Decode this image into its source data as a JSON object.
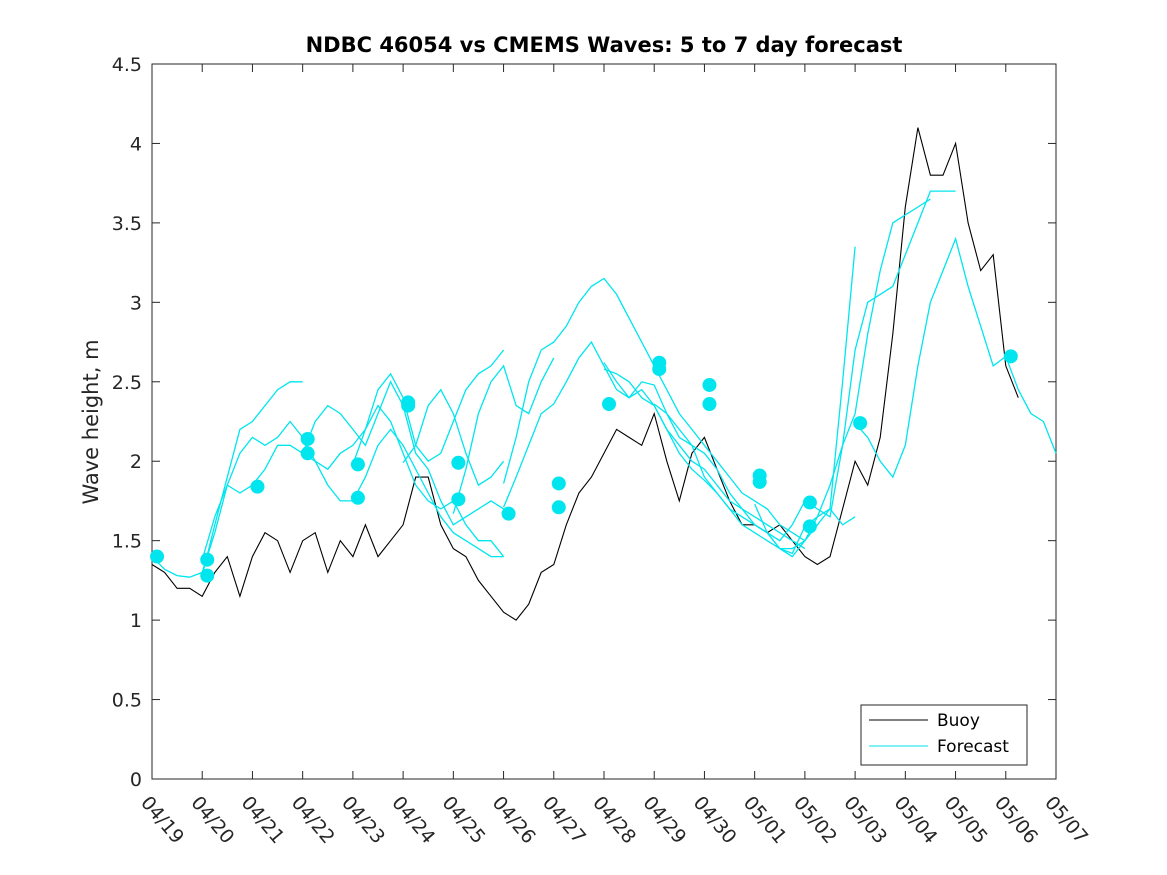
{
  "chart_data": {
    "type": "line",
    "title": "NDBC 46054 vs CMEMS Waves: 5 to 7 day forecast",
    "xlabel": "",
    "ylabel": "Wave height, m",
    "xlim": [
      0,
      18
    ],
    "ylim": [
      0,
      4.5
    ],
    "x_tick_labels": [
      "04/19",
      "04/20",
      "04/21",
      "04/22",
      "04/23",
      "04/24",
      "04/25",
      "04/26",
      "04/27",
      "04/28",
      "04/29",
      "04/30",
      "05/01",
      "05/02",
      "05/03",
      "05/04",
      "05/05",
      "05/06",
      "05/07"
    ],
    "y_ticks": [
      0,
      0.5,
      1,
      1.5,
      2,
      2.5,
      3,
      3.5,
      4,
      4.5
    ],
    "y_tick_labels": [
      "0",
      "0.5",
      "1",
      "1.5",
      "2",
      "2.5",
      "3",
      "3.5",
      "4",
      "4.5"
    ],
    "legend": {
      "position": "bottom-right",
      "entries": [
        "Buoy",
        "Forecast"
      ]
    },
    "colors": {
      "buoy": "#000000",
      "forecast": "#00e5ee",
      "axis": "#262626"
    },
    "buoy": {
      "name": "Buoy",
      "x": [
        0,
        0.25,
        0.5,
        0.75,
        1.0,
        1.25,
        1.5,
        1.75,
        2.0,
        2.25,
        2.5,
        2.75,
        3.0,
        3.25,
        3.5,
        3.75,
        4.0,
        4.25,
        4.5,
        4.75,
        5.0,
        5.25,
        5.5,
        5.75,
        6.0,
        6.25,
        6.5,
        6.75,
        7.0,
        7.25,
        7.5,
        7.75,
        8.0,
        8.25,
        8.5,
        8.75,
        9.0,
        9.25,
        9.5,
        9.75,
        10.0,
        10.25,
        10.5,
        10.75,
        11.0,
        11.25,
        11.5,
        11.75,
        12.0,
        12.25,
        12.5,
        12.75,
        13.0,
        13.25,
        13.5,
        13.75,
        14.0,
        14.25,
        14.5,
        14.75,
        15.0,
        15.25,
        15.5,
        15.75,
        16.0,
        16.25,
        16.5,
        16.75,
        17.0,
        17.25
      ],
      "y": [
        1.35,
        1.3,
        1.2,
        1.2,
        1.15,
        1.3,
        1.4,
        1.15,
        1.4,
        1.55,
        1.5,
        1.3,
        1.5,
        1.55,
        1.3,
        1.5,
        1.4,
        1.6,
        1.4,
        1.5,
        1.6,
        1.9,
        1.9,
        1.6,
        1.45,
        1.4,
        1.25,
        1.15,
        1.05,
        1.0,
        1.1,
        1.3,
        1.35,
        1.6,
        1.8,
        1.9,
        2.05,
        2.2,
        2.15,
        2.1,
        2.3,
        2.0,
        1.75,
        2.05,
        2.15,
        1.95,
        1.75,
        1.6,
        1.6,
        1.55,
        1.6,
        1.5,
        1.4,
        1.35,
        1.4,
        1.7,
        2.0,
        1.85,
        2.15,
        2.8,
        3.6,
        4.1,
        3.8,
        3.8,
        4.0,
        3.5,
        3.2,
        3.3,
        2.6,
        2.4
      ]
    },
    "forecast_runs": [
      {
        "x": [
          0,
          0.25,
          0.5,
          0.75,
          1.0,
          1.25,
          1.5,
          1.75,
          2.0,
          2.25,
          2.5,
          2.75,
          3.0,
          3.25,
          3.5,
          3.75,
          4.0,
          4.25,
          4.5,
          4.75,
          5.0,
          5.25,
          5.5,
          5.75,
          6.0,
          6.25,
          6.5,
          6.75,
          7.0
        ],
        "y": [
          1.4,
          1.32,
          1.28,
          1.27,
          1.3,
          1.55,
          1.85,
          1.8,
          1.85,
          1.95,
          2.1,
          2.1,
          2.05,
          2.0,
          1.85,
          1.75,
          1.75,
          1.9,
          2.1,
          2.2,
          2.1,
          1.95,
          1.8,
          1.65,
          1.55,
          1.5,
          1.45,
          1.4,
          1.4
        ]
      },
      {
        "x": [
          1.0,
          1.25,
          1.5,
          1.75,
          2.0,
          2.25,
          2.5,
          2.75,
          3.0
        ],
        "y": [
          1.28,
          1.6,
          1.9,
          2.2,
          2.25,
          2.35,
          2.45,
          2.5,
          2.5
        ]
      },
      {
        "x": [
          1.0,
          1.25,
          1.5,
          1.75,
          2.0,
          2.25,
          2.5,
          2.75,
          3.0,
          3.25,
          3.5,
          3.75,
          4.0,
          4.25,
          4.5,
          4.75,
          5.0,
          5.25,
          5.5,
          5.75,
          6.0,
          6.25,
          6.5,
          6.75,
          7.0
        ],
        "y": [
          1.38,
          1.65,
          1.85,
          2.05,
          2.15,
          2.1,
          2.15,
          2.25,
          2.15,
          2.0,
          1.95,
          2.05,
          2.1,
          2.2,
          2.35,
          2.25,
          2.05,
          1.85,
          1.75,
          1.7,
          1.75,
          1.6,
          1.5,
          1.5,
          1.4
        ]
      },
      {
        "x": [
          3.0,
          3.25,
          3.5,
          3.75,
          4.0,
          4.25,
          4.5,
          4.75,
          5.0,
          5.25,
          5.5,
          5.75,
          6.0,
          6.25,
          6.5,
          6.75,
          7.0
        ],
        "y": [
          2.05,
          2.25,
          2.35,
          2.3,
          2.2,
          2.1,
          2.3,
          2.5,
          2.35,
          2.05,
          1.95,
          1.75,
          1.6,
          1.65,
          1.7,
          1.75,
          1.7
        ]
      },
      {
        "x": [
          4.0,
          4.25,
          4.5,
          4.75,
          5.0,
          5.25,
          5.5,
          5.75,
          6.0,
          6.25,
          6.5,
          6.75,
          7.0
        ],
        "y": [
          1.98,
          2.2,
          2.45,
          2.55,
          2.4,
          2.1,
          2.0,
          2.05,
          2.25,
          2.45,
          2.55,
          2.6,
          2.7
        ]
      },
      {
        "x": [
          5.0,
          5.25,
          5.5,
          5.75,
          6.0,
          6.25,
          6.5,
          6.75,
          7.0
        ],
        "y": [
          1.99,
          2.1,
          2.35,
          2.45,
          2.3,
          2.05,
          1.85,
          1.9,
          2.0
        ]
      },
      {
        "x": [
          6.0,
          6.25,
          6.5,
          6.75,
          7.0,
          7.25,
          7.5,
          7.75,
          8.0
        ],
        "y": [
          1.67,
          1.95,
          2.3,
          2.5,
          2.6,
          2.35,
          2.3,
          2.5,
          2.65
        ]
      },
      {
        "x": [
          7.0,
          7.25,
          7.5,
          7.75,
          8.0,
          8.25,
          8.5,
          8.75,
          9.0,
          9.25,
          9.5,
          9.75,
          10.0,
          10.25,
          10.5,
          10.75,
          11.0,
          11.25,
          11.5,
          11.75,
          12.0,
          12.25,
          12.5,
          12.75,
          13.0
        ],
        "y": [
          1.86,
          2.15,
          2.5,
          2.7,
          2.75,
          2.85,
          3.0,
          3.1,
          3.15,
          3.05,
          2.9,
          2.75,
          2.6,
          2.45,
          2.3,
          2.2,
          2.1,
          2.0,
          1.9,
          1.8,
          1.75,
          1.7,
          1.6,
          1.55,
          1.5
        ]
      },
      {
        "x": [
          7.0,
          7.25,
          7.5,
          7.75,
          8.0,
          8.25,
          8.5,
          8.75,
          9.0,
          9.25,
          9.5,
          9.75,
          10.0,
          10.25,
          10.5,
          10.75,
          11.0,
          11.25,
          11.5,
          11.75,
          12.0,
          12.25,
          12.5,
          12.75,
          13.0
        ],
        "y": [
          1.71,
          1.9,
          2.1,
          2.3,
          2.36,
          2.5,
          2.65,
          2.75,
          2.6,
          2.45,
          2.4,
          2.5,
          2.48,
          2.3,
          2.15,
          2.1,
          2.05,
          1.95,
          1.8,
          1.7,
          1.65,
          1.6,
          1.55,
          1.5,
          1.45
        ]
      },
      {
        "x": [
          9.0,
          9.25,
          9.5,
          9.75,
          10.0,
          10.25,
          10.5,
          10.75,
          11.0,
          11.25,
          11.5,
          11.75,
          12.0,
          12.25,
          12.5,
          12.75,
          13.0,
          13.25,
          13.5,
          13.75,
          14.0
        ],
        "y": [
          2.62,
          2.5,
          2.4,
          2.45,
          2.35,
          2.2,
          2.1,
          2.0,
          1.95,
          1.85,
          1.75,
          1.7,
          1.6,
          1.55,
          1.45,
          1.45,
          1.5,
          1.6,
          1.7,
          1.6,
          1.65
        ]
      },
      {
        "x": [
          9.0,
          9.25,
          9.5,
          9.75,
          10.0,
          10.25,
          10.5,
          10.75,
          11.0,
          11.25,
          11.5,
          11.75,
          12.0,
          12.25,
          12.5,
          12.75,
          13.0,
          13.25,
          13.5,
          13.75,
          14.0,
          14.25,
          14.5,
          14.75,
          15.0,
          15.25,
          15.5,
          15.75,
          16.0
        ],
        "y": [
          2.58,
          2.55,
          2.5,
          2.4,
          2.35,
          2.2,
          2.05,
          1.95,
          1.88,
          1.8,
          1.7,
          1.65,
          1.6,
          1.55,
          1.5,
          1.6,
          1.75,
          1.7,
          1.65,
          2.1,
          2.7,
          3.0,
          3.05,
          3.1,
          3.3,
          3.5,
          3.7,
          3.7,
          3.7
        ]
      },
      {
        "x": [
          10.0,
          10.25,
          10.5,
          10.75,
          11.0,
          11.25,
          11.5,
          11.75,
          12.0,
          12.25,
          12.5,
          12.75,
          13.0,
          13.25,
          13.5,
          13.75,
          14.0
        ],
        "y": [
          2.36,
          2.3,
          2.2,
          2.1,
          1.9,
          1.8,
          1.7,
          1.6,
          1.55,
          1.5,
          1.45,
          1.42,
          1.59,
          1.65,
          1.7,
          2.5,
          3.35
        ]
      },
      {
        "x": [
          12.0,
          12.25,
          12.5,
          12.75,
          13.0,
          13.25,
          13.5,
          13.75,
          14.0,
          14.25,
          14.5,
          14.75,
          15.0,
          15.25,
          15.5
        ],
        "y": [
          1.73,
          1.55,
          1.45,
          1.4,
          1.5,
          1.65,
          1.85,
          2.1,
          2.3,
          2.8,
          3.2,
          3.5,
          3.55,
          3.6,
          3.65
        ]
      },
      {
        "x": [
          14.0,
          14.25,
          14.5,
          14.75,
          15.0,
          15.25,
          15.5,
          15.75,
          16.0,
          16.25,
          16.5,
          16.75,
          17.0,
          17.25,
          17.5,
          17.75,
          18.0
        ],
        "y": [
          2.24,
          2.15,
          2.0,
          1.9,
          2.1,
          2.6,
          3.0,
          3.2,
          3.4,
          3.1,
          2.85,
          2.6,
          2.66,
          2.45,
          2.3,
          2.25,
          2.05
        ]
      }
    ],
    "forecast_markers": [
      {
        "x": 0.1,
        "y": 1.4
      },
      {
        "x": 1.1,
        "y": 1.38
      },
      {
        "x": 1.1,
        "y": 1.28
      },
      {
        "x": 2.1,
        "y": 1.84
      },
      {
        "x": 3.1,
        "y": 2.14
      },
      {
        "x": 3.1,
        "y": 2.05
      },
      {
        "x": 4.1,
        "y": 1.98
      },
      {
        "x": 4.1,
        "y": 1.77
      },
      {
        "x": 5.1,
        "y": 2.37
      },
      {
        "x": 5.1,
        "y": 2.35
      },
      {
        "x": 6.1,
        "y": 1.99
      },
      {
        "x": 6.1,
        "y": 1.76
      },
      {
        "x": 7.1,
        "y": 1.67
      },
      {
        "x": 8.1,
        "y": 1.86
      },
      {
        "x": 8.1,
        "y": 1.71
      },
      {
        "x": 9.1,
        "y": 2.36
      },
      {
        "x": 10.1,
        "y": 2.62
      },
      {
        "x": 10.1,
        "y": 2.58
      },
      {
        "x": 11.1,
        "y": 2.48
      },
      {
        "x": 11.1,
        "y": 2.36
      },
      {
        "x": 12.1,
        "y": 1.91
      },
      {
        "x": 12.1,
        "y": 1.87
      },
      {
        "x": 13.1,
        "y": 1.74
      },
      {
        "x": 13.1,
        "y": 1.59
      },
      {
        "x": 14.1,
        "y": 2.24
      },
      {
        "x": 17.1,
        "y": 2.66
      }
    ]
  }
}
